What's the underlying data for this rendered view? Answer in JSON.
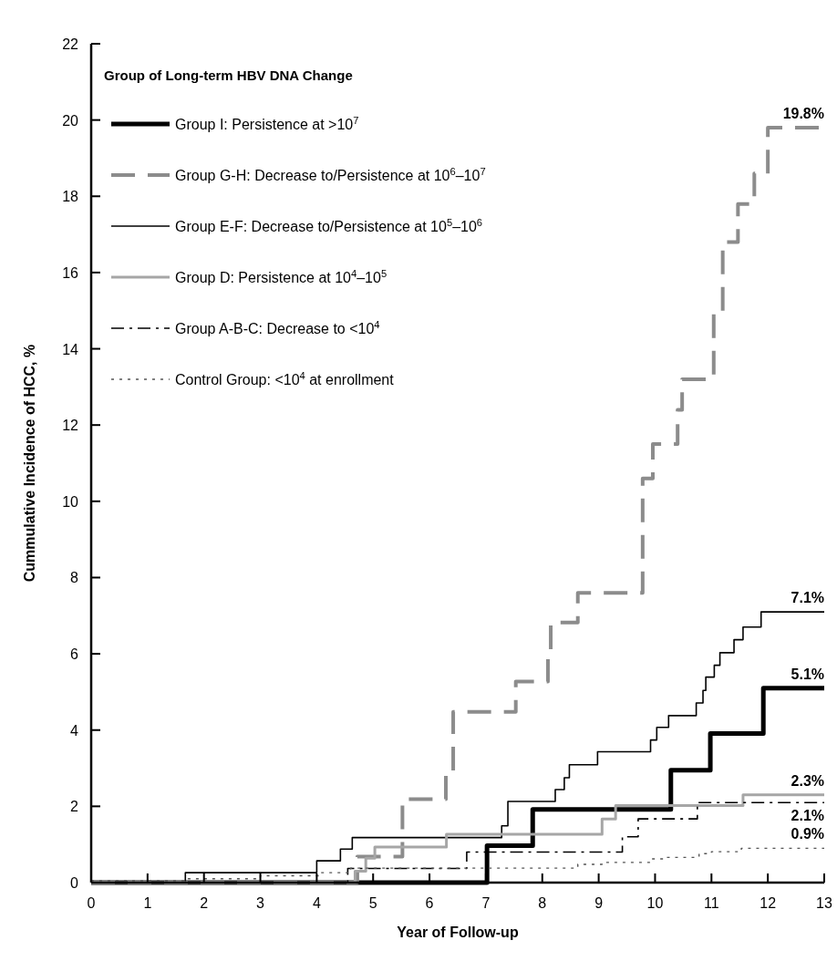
{
  "chart_data": {
    "type": "step",
    "xlabel": "Year of Follow-up",
    "ylabel": "Cummulative Incidence of HCC, %",
    "legend_title": "Group of Long-term HBV DNA Change",
    "legend": "top left",
    "xlim": [
      0,
      13
    ],
    "xticks": [
      0,
      1,
      2,
      3,
      4,
      5,
      6,
      7,
      8,
      9,
      10,
      11,
      12,
      13
    ],
    "ylim": [
      0,
      22
    ],
    "yticks": [
      0,
      2,
      4,
      6,
      8,
      10,
      12,
      14,
      16,
      18,
      20,
      22
    ],
    "grid": false,
    "series": [
      {
        "name": "Group I: Persistence at >10$^{7}$",
        "color": "#000000",
        "line_style": "solid",
        "x": [
          0,
          7.02,
          7.83,
          10.28,
          10.98,
          11.92,
          13
        ],
        "values": [
          0,
          0.97,
          1.92,
          2.95,
          3.91,
          5.1,
          5.1
        ]
      },
      {
        "name": "Group G-H: Decrease to/Persistence at 10$^{6}$–10$^{7}$",
        "color": "#8c8c8c",
        "line_style": "dashed",
        "x": [
          0,
          4.72,
          5.52,
          6.29,
          6.42,
          7.53,
          8.1,
          8.15,
          8.63,
          9.78,
          9.96,
          10.4,
          10.48,
          11.04,
          11.2,
          11.47,
          11.76,
          12.0,
          13
        ],
        "values": [
          0,
          0.68,
          2.19,
          2.93,
          4.48,
          5.27,
          6.12,
          6.82,
          7.6,
          10.6,
          11.5,
          12.4,
          13.2,
          15.0,
          16.8,
          17.8,
          18.6,
          19.8,
          19.8
        ]
      },
      {
        "name": "Group E-F: Decrease to/Persistence at 10$^{5}$–10$^{6}$",
        "color": "#000000",
        "line_style": "solid",
        "x": [
          0,
          1.67,
          4.0,
          4.42,
          4.63,
          7.28,
          7.39,
          8.23,
          8.39,
          8.48,
          8.98,
          9.92,
          10.03,
          10.24,
          10.73,
          10.85,
          10.9,
          11.05,
          11.15,
          11.4,
          11.56,
          11.88,
          13
        ],
        "values": [
          0,
          0.26,
          0.57,
          0.88,
          1.18,
          1.49,
          2.13,
          2.44,
          2.75,
          3.09,
          3.43,
          3.74,
          4.07,
          4.38,
          4.71,
          5.04,
          5.39,
          5.7,
          6.03,
          6.37,
          6.7,
          7.1,
          7.1
        ]
      },
      {
        "name": "Group D: Persistence at 10$^{4}$–10$^{5}$",
        "color": "#a6a6a6",
        "line_style": "solid",
        "x": [
          0,
          4.68,
          4.87,
          5.03,
          6.3,
          9.06,
          9.3,
          11.56,
          13
        ],
        "values": [
          0,
          0.3,
          0.64,
          0.93,
          1.27,
          1.67,
          2.02,
          2.3,
          2.3
        ]
      },
      {
        "name": "Group A-B-C: Decrease to <10$^{4}$",
        "color": "#000000",
        "line_style": "dashdot",
        "x": [
          0,
          4.55,
          6.66,
          9.42,
          9.7,
          10.75,
          13
        ],
        "values": [
          0,
          0.37,
          0.8,
          1.2,
          1.67,
          2.1,
          2.1
        ]
      },
      {
        "name": "Control Group: <10$^{4}$ at enrollment",
        "color": "#555555",
        "line_style": "dotted",
        "x": [
          0,
          1.67,
          3.0,
          4.07,
          4.6,
          8.63,
          9.06,
          9.92,
          10.19,
          10.78,
          11.0,
          11.53,
          13
        ],
        "values": [
          0.05,
          0.1,
          0.18,
          0.26,
          0.38,
          0.48,
          0.53,
          0.62,
          0.66,
          0.76,
          0.81,
          0.9,
          0.9
        ]
      }
    ],
    "annotations": [
      {
        "text": "19.8%",
        "y": 19.8
      },
      {
        "text": "7.1%",
        "y": 7.1
      },
      {
        "text": "5.1%",
        "y": 5.1
      },
      {
        "text": "2.3%",
        "y": 2.3
      },
      {
        "text": "2.1%",
        "y": 2.1
      },
      {
        "text": "0.9%",
        "y": 0.9
      }
    ]
  }
}
